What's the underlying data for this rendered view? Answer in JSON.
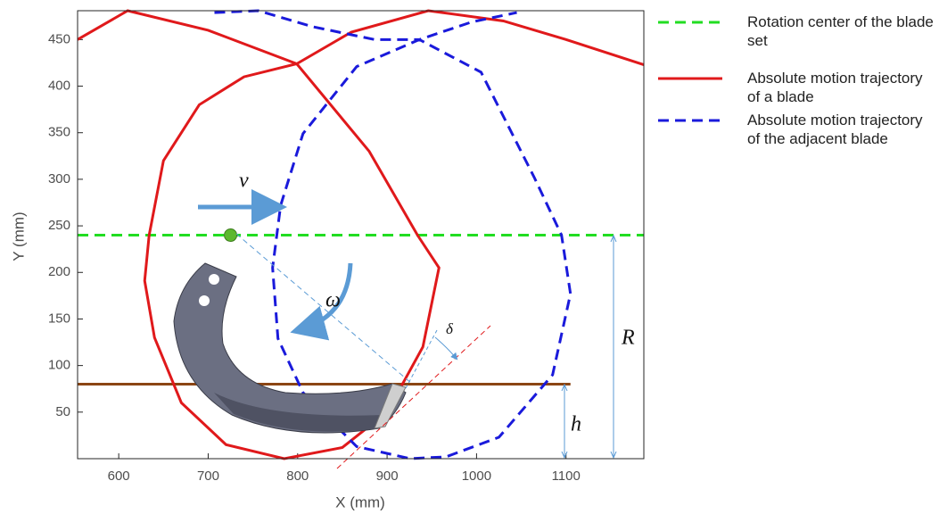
{
  "chart_data": {
    "type": "line",
    "xlabel": "X (mm)",
    "ylabel": "Y (mm)",
    "xlim": [
      554,
      1187
    ],
    "ylim": [
      0,
      481
    ],
    "xticks": [
      600,
      700,
      800,
      900,
      1000,
      1100
    ],
    "yticks": [
      50,
      100,
      150,
      200,
      250,
      300,
      350,
      400,
      450
    ],
    "series": [
      {
        "name": "Rotation center of the blade set",
        "color": "#22dd22",
        "dash": true,
        "x": [
          554,
          1187
        ],
        "y": [
          240,
          240
        ]
      },
      {
        "name": "Absolute motion trajectory of a blade",
        "color": "#e0191b",
        "dash": false,
        "x": [
          554,
          610,
          700,
          799,
          880,
          934,
          958,
          940,
          900,
          850,
          785,
          720,
          670,
          640,
          629,
          634,
          650,
          690,
          740,
          799,
          860,
          946,
          1030,
          1100,
          1187
        ],
        "y": [
          450,
          481,
          460,
          424,
          330,
          240,
          205,
          120,
          50,
          12,
          0,
          15,
          60,
          130,
          191,
          240,
          320,
          380,
          410,
          424,
          458,
          481,
          470,
          450,
          423
        ]
      },
      {
        "name": "Absolute motion trajectory of the adjacent blade",
        "color": "#1a1adb",
        "dash": true,
        "x": [
          707,
          756,
          816,
          886,
          936,
          1005,
          1065,
          1095,
          1105,
          1085,
          1025,
          966,
          926,
          866,
          806,
          778,
          772,
          781,
          806,
          866,
          936,
          995,
          1045
        ],
        "y": [
          479,
          481,
          464,
          450,
          450,
          415,
          301,
          240,
          177,
          90,
          23,
          2,
          0,
          13,
          71,
          129,
          205,
          272,
          349,
          421,
          450,
          469,
          479
        ]
      }
    ],
    "ground_line": {
      "color": "#8b4513",
      "x": [
        554,
        1105
      ],
      "y": [
        80,
        80
      ]
    },
    "rotation_center": {
      "x": 725,
      "y": 240,
      "color": "#5cb82e"
    },
    "annotations": [
      "v",
      "ω",
      "δ",
      "R",
      "h"
    ]
  }
}
